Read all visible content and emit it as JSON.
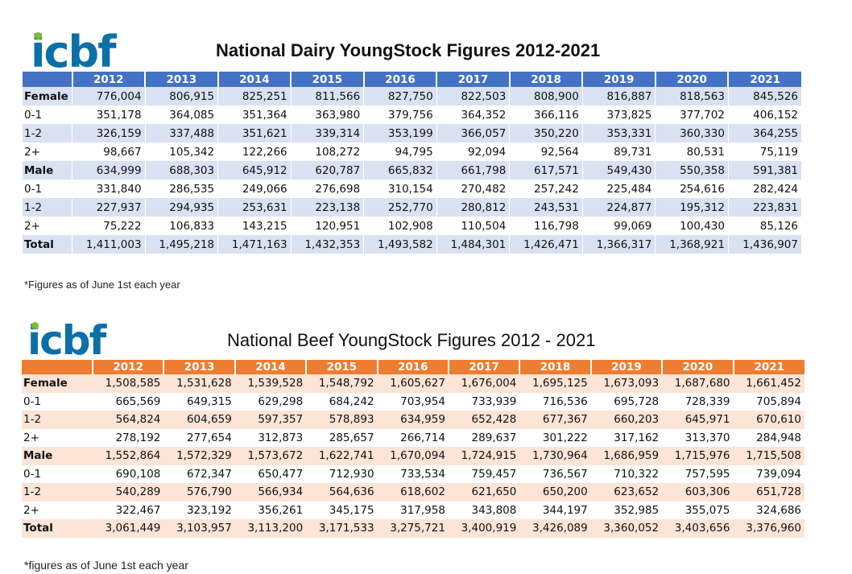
{
  "dairy": {
    "logo": "icbf",
    "title": "National Dairy YoungStock Figures 2012-2021",
    "years": [
      "2012",
      "2013",
      "2014",
      "2015",
      "2016",
      "2017",
      "2018",
      "2019",
      "2020",
      "2021"
    ],
    "rows": [
      {
        "label": "Female",
        "bold": true,
        "values": [
          "776,004",
          "806,915",
          "825,251",
          "811,566",
          "827,750",
          "822,503",
          "808,900",
          "816,887",
          "818,563",
          "845,526"
        ]
      },
      {
        "label": "0-1",
        "bold": false,
        "values": [
          "351,178",
          "364,085",
          "351,364",
          "363,980",
          "379,756",
          "364,352",
          "366,116",
          "373,825",
          "377,702",
          "406,152"
        ]
      },
      {
        "label": "1-2",
        "bold": false,
        "values": [
          "326,159",
          "337,488",
          "351,621",
          "339,314",
          "353,199",
          "366,057",
          "350,220",
          "353,331",
          "360,330",
          "364,255"
        ]
      },
      {
        "label": "2+",
        "bold": false,
        "values": [
          "98,667",
          "105,342",
          "122,266",
          "108,272",
          "94,795",
          "92,094",
          "92,564",
          "89,731",
          "80,531",
          "75,119"
        ]
      },
      {
        "label": "Male",
        "bold": true,
        "values": [
          "634,999",
          "688,303",
          "645,912",
          "620,787",
          "665,832",
          "661,798",
          "617,571",
          "549,430",
          "550,358",
          "591,381"
        ]
      },
      {
        "label": "0-1",
        "bold": false,
        "values": [
          "331,840",
          "286,535",
          "249,066",
          "276,698",
          "310,154",
          "270,482",
          "257,242",
          "225,484",
          "254,616",
          "282,424"
        ]
      },
      {
        "label": "1-2",
        "bold": false,
        "values": [
          "227,937",
          "294,935",
          "253,631",
          "223,138",
          "252,770",
          "280,812",
          "243,531",
          "224,877",
          "195,312",
          "223,831"
        ]
      },
      {
        "label": "2+",
        "bold": false,
        "values": [
          "75,222",
          "106,833",
          "143,215",
          "120,951",
          "102,908",
          "110,504",
          "116,798",
          "99,069",
          "100,430",
          "85,126"
        ]
      },
      {
        "label": "Total",
        "bold": true,
        "values": [
          "1,411,003",
          "1,495,218",
          "1,471,163",
          "1,432,353",
          "1,493,582",
          "1,484,301",
          "1,426,471",
          "1,366,317",
          "1,368,921",
          "1,436,907"
        ]
      }
    ],
    "note": "*Figures as of June 1st each year"
  },
  "beef": {
    "logo": "icbf",
    "title": "National Beef YoungStock Figures 2012 - 2021",
    "years": [
      "2012",
      "2013",
      "2014",
      "2015",
      "2016",
      "2017",
      "2018",
      "2019",
      "2020",
      "2021"
    ],
    "rows": [
      {
        "label": "Female",
        "bold": true,
        "values": [
          "1,508,585",
          "1,531,628",
          "1,539,528",
          "1,548,792",
          "1,605,627",
          "1,676,004",
          "1,695,125",
          "1,673,093",
          "1,687,680",
          "1,661,452"
        ]
      },
      {
        "label": "0-1",
        "bold": false,
        "values": [
          "665,569",
          "649,315",
          "629,298",
          "684,242",
          "703,954",
          "733,939",
          "716,536",
          "695,728",
          "728,339",
          "705,894"
        ]
      },
      {
        "label": "1-2",
        "bold": false,
        "values": [
          "564,824",
          "604,659",
          "597,357",
          "578,893",
          "634,959",
          "652,428",
          "677,367",
          "660,203",
          "645,971",
          "670,610"
        ]
      },
      {
        "label": "2+",
        "bold": false,
        "values": [
          "278,192",
          "277,654",
          "312,873",
          "285,657",
          "266,714",
          "289,637",
          "301,222",
          "317,162",
          "313,370",
          "284,948"
        ]
      },
      {
        "label": "Male",
        "bold": true,
        "values": [
          "1,552,864",
          "1,572,329",
          "1,573,672",
          "1,622,741",
          "1,670,094",
          "1,724,915",
          "1,730,964",
          "1,686,959",
          "1,715,976",
          "1,715,508"
        ]
      },
      {
        "label": "0-1",
        "bold": false,
        "values": [
          "690,108",
          "672,347",
          "650,477",
          "712,930",
          "733,534",
          "759,457",
          "736,567",
          "710,322",
          "757,595",
          "739,094"
        ]
      },
      {
        "label": "1-2",
        "bold": false,
        "values": [
          "540,289",
          "576,790",
          "566,934",
          "564,636",
          "618,602",
          "621,650",
          "650,200",
          "623,652",
          "603,306",
          "651,728"
        ]
      },
      {
        "label": "2+",
        "bold": false,
        "values": [
          "322,467",
          "323,192",
          "356,261",
          "345,175",
          "317,958",
          "343,808",
          "344,197",
          "352,985",
          "355,075",
          "324,686"
        ]
      },
      {
        "label": "Total",
        "bold": true,
        "values": [
          "3,061,449",
          "3,103,957",
          "3,113,200",
          "3,171,533",
          "3,275,721",
          "3,400,919",
          "3,426,089",
          "3,360,052",
          "3,403,656",
          "3,376,960"
        ]
      }
    ],
    "note": "*figures as of June 1st each year"
  },
  "colors": {
    "dairy_header": "#4472c4",
    "dairy_band": "#d9e1f2",
    "beef_header": "#ed7d31",
    "beef_band": "#fce4d6",
    "logo_blue": "#0b6fa8",
    "logo_green": "#7dbb2b"
  }
}
